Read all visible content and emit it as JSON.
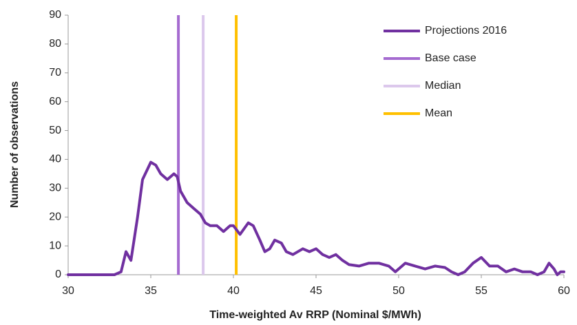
{
  "chart_data": {
    "type": "line",
    "x_label": "Time-weighted Av RRP (Nominal $/MWh)",
    "y_label": "Number of observations",
    "xlim": [
      30,
      60
    ],
    "xticks": [
      30,
      35,
      40,
      45,
      50,
      55,
      60
    ],
    "ylim": [
      0,
      90
    ],
    "yticks": [
      0,
      10,
      20,
      30,
      40,
      50,
      60,
      70,
      80,
      90
    ],
    "grid": false,
    "legend": "top-right",
    "series": [
      {
        "name": "Projections 2016",
        "color": "#7030a0",
        "x": [
          30,
          31,
          32,
          32.8,
          33.2,
          33.5,
          33.8,
          34.2,
          34.5,
          35,
          35.3,
          35.6,
          36,
          36.4,
          36.6,
          36.8,
          37.2,
          37.6,
          38,
          38.3,
          38.6,
          39,
          39.4,
          39.8,
          40,
          40.4,
          40.9,
          41.2,
          41.6,
          41.9,
          42.2,
          42.5,
          42.9,
          43.2,
          43.6,
          44.2,
          44.6,
          45,
          45.4,
          45.8,
          46.2,
          46.6,
          47,
          47.6,
          48.2,
          48.8,
          49.4,
          49.8,
          50.4,
          51,
          51.6,
          52.2,
          52.8,
          53.2,
          53.6,
          54,
          54.5,
          55,
          55.5,
          56,
          56.5,
          57,
          57.5,
          58,
          58.4,
          58.8,
          59.1,
          59.4,
          59.6,
          59.8,
          60
        ],
        "values": [
          0,
          0,
          0,
          0,
          1,
          8,
          5,
          20,
          33,
          39,
          38,
          35,
          33,
          35,
          34,
          29,
          25,
          23,
          21,
          18,
          17,
          17,
          15,
          17,
          17,
          14,
          18,
          17,
          12,
          8,
          9,
          12,
          11,
          8,
          7,
          9,
          8,
          9,
          7,
          6,
          7,
          5,
          3.5,
          3,
          4,
          4,
          3,
          1,
          4,
          3,
          2,
          3,
          2.5,
          1,
          0,
          1,
          4,
          6,
          3,
          3,
          1,
          2,
          1,
          1,
          0,
          1,
          4,
          2,
          0,
          1,
          1
        ]
      }
    ],
    "vlines": [
      {
        "name": "Base case",
        "color": "#a56bd0",
        "x": 36.67
      },
      {
        "name": "Median",
        "color": "#dcc8ec",
        "x": 38.17
      },
      {
        "name": "Mean",
        "color": "#ffc000",
        "x": 40.17
      }
    ]
  }
}
